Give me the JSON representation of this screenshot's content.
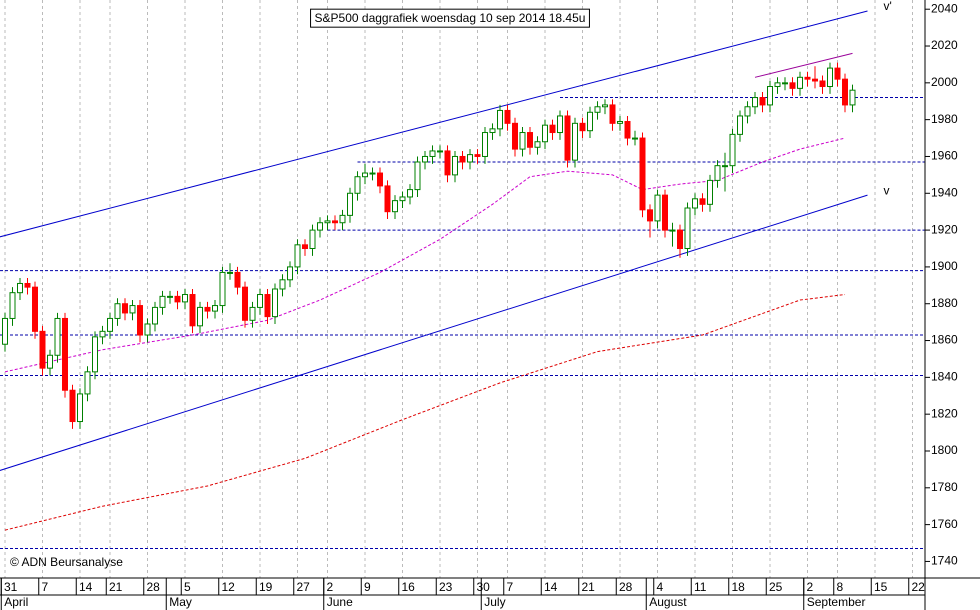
{
  "chart_data": {
    "type": "candlestick",
    "title": "S&P500 daggrafiek woensdag 10 sep 2014 18.45u",
    "source": "© ADN Beursanalyse",
    "categories": [
      "31",
      null,
      null,
      null,
      null,
      "7",
      null,
      null,
      null,
      null,
      "14",
      null,
      null,
      null,
      "21",
      null,
      null,
      null,
      null,
      "28",
      null,
      null,
      null,
      null,
      "5",
      null,
      null,
      null,
      null,
      "12",
      null,
      null,
      null,
      null,
      "19",
      null,
      null,
      null,
      null,
      "27",
      null,
      null,
      null,
      "2",
      null,
      null,
      null,
      null,
      "9",
      null,
      null,
      null,
      null,
      "16",
      null,
      null,
      null,
      null,
      "23",
      null,
      null,
      null,
      null,
      "30",
      null,
      null,
      null,
      "7",
      null,
      null,
      null,
      null,
      "14",
      null,
      null,
      null,
      null,
      "21",
      null,
      null,
      null,
      null,
      "28",
      null,
      null,
      null,
      null,
      "4",
      null,
      null,
      null,
      null,
      "11",
      null,
      null,
      null,
      null,
      "18",
      null,
      null,
      null,
      null,
      "25",
      null,
      null,
      null,
      null,
      "2",
      null,
      null,
      null,
      "8",
      null,
      null,
      null,
      null,
      "15",
      null,
      null,
      null,
      null,
      "22"
    ],
    "months": [
      {
        "name": "April",
        "start": 0
      },
      {
        "name": "May",
        "start": 22
      },
      {
        "name": "June",
        "start": 43
      },
      {
        "name": "July",
        "start": 64
      },
      {
        "name": "August",
        "start": 86
      },
      {
        "name": "September",
        "start": 107
      }
    ],
    "open": [
      1858,
      1872,
      1886,
      1891,
      1889,
      1865,
      1845,
      1852,
      1872,
      1833,
      1816,
      1831,
      1843,
      1862,
      1865,
      1872,
      1880,
      1875,
      1879,
      1863,
      1869,
      1878,
      1884,
      1884,
      1881,
      1885,
      1868,
      1878,
      1876,
      1879,
      1897,
      1897,
      1889,
      1871,
      1878,
      1885,
      1873,
      1888,
      1893,
      1900,
      1912,
      1910,
      1920,
      1924,
      1925,
      1924,
      1928,
      1940,
      1949,
      1951,
      1951,
      1944,
      1930,
      1936,
      1938,
      1942,
      1957,
      1960,
      1963,
      1963,
      1950,
      1960,
      1957,
      1961,
      1960,
      1973,
      1975,
      1985,
      1978,
      1964,
      1973,
      1965,
      1968,
      1977,
      1973,
      1982,
      1958,
      1978,
      1974,
      1984,
      1987,
      1988,
      1978,
      1979,
      1970,
      1970,
      1931,
      1925,
      1939,
      1920,
      1920,
      1910,
      1932,
      1937,
      1934,
      1947,
      1955,
      1955,
      1972,
      1982,
      1987,
      1992,
      1988,
      1998,
      2000,
      2000,
      1997,
      2003,
      2002,
      2001,
      1998,
      2008,
      2002,
      1988,
      null,
      null,
      null,
      null,
      null,
      null,
      null,
      null
    ],
    "high": [
      1875,
      1889,
      1894,
      1894,
      1892,
      1868,
      1855,
      1875,
      1875,
      1836,
      1834,
      1846,
      1865,
      1868,
      1875,
      1883,
      1883,
      1882,
      1882,
      1872,
      1881,
      1887,
      1887,
      1887,
      1888,
      1888,
      1881,
      1881,
      1882,
      1900,
      1902,
      1900,
      1892,
      1881,
      1888,
      1888,
      1891,
      1896,
      1903,
      1915,
      1915,
      1923,
      1927,
      1928,
      1928,
      1931,
      1943,
      1952,
      1956,
      1954,
      1954,
      1947,
      1939,
      1941,
      1945,
      1960,
      1963,
      1966,
      1966,
      1966,
      1963,
      1963,
      1964,
      1964,
      1976,
      1978,
      1988,
      1988,
      1981,
      1976,
      1976,
      1971,
      1980,
      1980,
      1985,
      1985,
      1981,
      1981,
      1987,
      1990,
      1991,
      1991,
      1982,
      1982,
      1974,
      1973,
      1934,
      1942,
      1942,
      1924,
      1923,
      1935,
      1940,
      1940,
      1950,
      1958,
      1962,
      1975,
      1985,
      1990,
      1995,
      1995,
      2001,
      2003,
      2003,
      2003,
      2006,
      2006,
      2009,
      2004,
      2011,
      2011,
      2005,
      1999,
      null,
      null,
      null,
      null,
      null,
      null,
      null,
      null
    ],
    "low": [
      1854,
      1868,
      1882,
      1885,
      1861,
      1841,
      1841,
      1848,
      1829,
      1812,
      1812,
      1827,
      1839,
      1858,
      1861,
      1868,
      1871,
      1871,
      1859,
      1859,
      1865,
      1874,
      1880,
      1877,
      1877,
      1864,
      1864,
      1872,
      1872,
      1875,
      1893,
      1885,
      1867,
      1867,
      1874,
      1869,
      1869,
      1884,
      1889,
      1896,
      1906,
      1906,
      1916,
      1920,
      1920,
      1920,
      1924,
      1936,
      1945,
      1947,
      1940,
      1926,
      1926,
      1932,
      1934,
      1938,
      1953,
      1956,
      1959,
      1946,
      1946,
      1953,
      1953,
      1956,
      1956,
      1969,
      1971,
      1974,
      1960,
      1960,
      1961,
      1961,
      1964,
      1969,
      1969,
      1954,
      1954,
      1970,
      1970,
      1980,
      1983,
      1974,
      1974,
      1966,
      1966,
      1927,
      1916,
      1921,
      1916,
      1911,
      1905,
      1906,
      1928,
      1930,
      1930,
      1943,
      1941,
      1951,
      1968,
      1978,
      1983,
      1984,
      1984,
      1994,
      1996,
      1993,
      1993,
      1998,
      1997,
      1994,
      1994,
      1998,
      1984,
      1984,
      null,
      null,
      null,
      null,
      null,
      null,
      null,
      null
    ],
    "close": [
      1872,
      1886,
      1891,
      1889,
      1865,
      1845,
      1852,
      1872,
      1833,
      1816,
      1831,
      1843,
      1862,
      1865,
      1872,
      1880,
      1875,
      1879,
      1863,
      1869,
      1878,
      1884,
      1884,
      1881,
      1885,
      1868,
      1878,
      1876,
      1879,
      1897,
      1897,
      1889,
      1871,
      1878,
      1885,
      1873,
      1888,
      1893,
      1900,
      1912,
      1910,
      1920,
      1924,
      1925,
      1924,
      1928,
      1940,
      1949,
      1951,
      1951,
      1944,
      1930,
      1936,
      1938,
      1942,
      1957,
      1960,
      1963,
      1963,
      1950,
      1960,
      1957,
      1961,
      1960,
      1973,
      1975,
      1985,
      1978,
      1964,
      1973,
      1965,
      1968,
      1977,
      1973,
      1982,
      1958,
      1978,
      1974,
      1984,
      1987,
      1988,
      1978,
      1979,
      1970,
      1970,
      1931,
      1925,
      1939,
      1920,
      1920,
      1910,
      1932,
      1937,
      1934,
      1947,
      1955,
      1955,
      1972,
      1982,
      1987,
      1992,
      1988,
      1998,
      2000,
      2000,
      1997,
      2003,
      2002,
      2001,
      1998,
      2008,
      2002,
      1988,
      1996,
      null,
      null,
      null,
      null,
      null,
      null,
      null,
      null
    ],
    "up_color": "#008000",
    "down_color": "#ff0000",
    "moving_averages": [
      {
        "color": "#cc00cc",
        "x": [
          0,
          13,
          25,
          35,
          42,
          50,
          58,
          65,
          70,
          75,
          81,
          85,
          90,
          95,
          101,
          106,
          112
        ],
        "values": [
          1843,
          1855,
          1863,
          1871,
          1882,
          1897,
          1915,
          1934,
          1949,
          1952,
          1950,
          1942,
          1945,
          1947,
          1957,
          1964,
          1970
        ]
      },
      {
        "color": "#dd0000",
        "x": [
          0,
          13,
          27,
          40,
          53,
          66,
          79,
          93,
          106,
          112
        ],
        "values": [
          1757,
          1770,
          1781,
          1796,
          1817,
          1837,
          1854,
          1863,
          1882,
          1885
        ]
      }
    ],
    "trend_lines": [
      {
        "label": "v'",
        "color": "#0000cc",
        "x": [
          -1,
          115
        ],
        "values": [
          1916,
          2039
        ]
      },
      {
        "label": "v",
        "color": "#0000cc",
        "x": [
          -1,
          115
        ],
        "values": [
          1789,
          1939
        ]
      },
      {
        "color": "#990099",
        "x": [
          100,
          113
        ],
        "values": [
          2003,
          2016
        ]
      }
    ],
    "levels": [
      {
        "value": 1992,
        "from": 74
      },
      {
        "value": 1957,
        "from": 47
      },
      {
        "value": 1920,
        "from": 43
      },
      {
        "value": 1898,
        "from": 0
      },
      {
        "value": 1863,
        "from": 0
      },
      {
        "value": 1841,
        "from": 0
      },
      {
        "value": 1747,
        "from": 0
      }
    ],
    "level_color": "#0000aa",
    "ylim": [
      1731,
      2045
    ],
    "yticks": [
      1740,
      1760,
      1780,
      1800,
      1820,
      1840,
      1860,
      1880,
      1900,
      1920,
      1940,
      1960,
      1980,
      2000,
      2020,
      2040
    ],
    "grid": true
  }
}
